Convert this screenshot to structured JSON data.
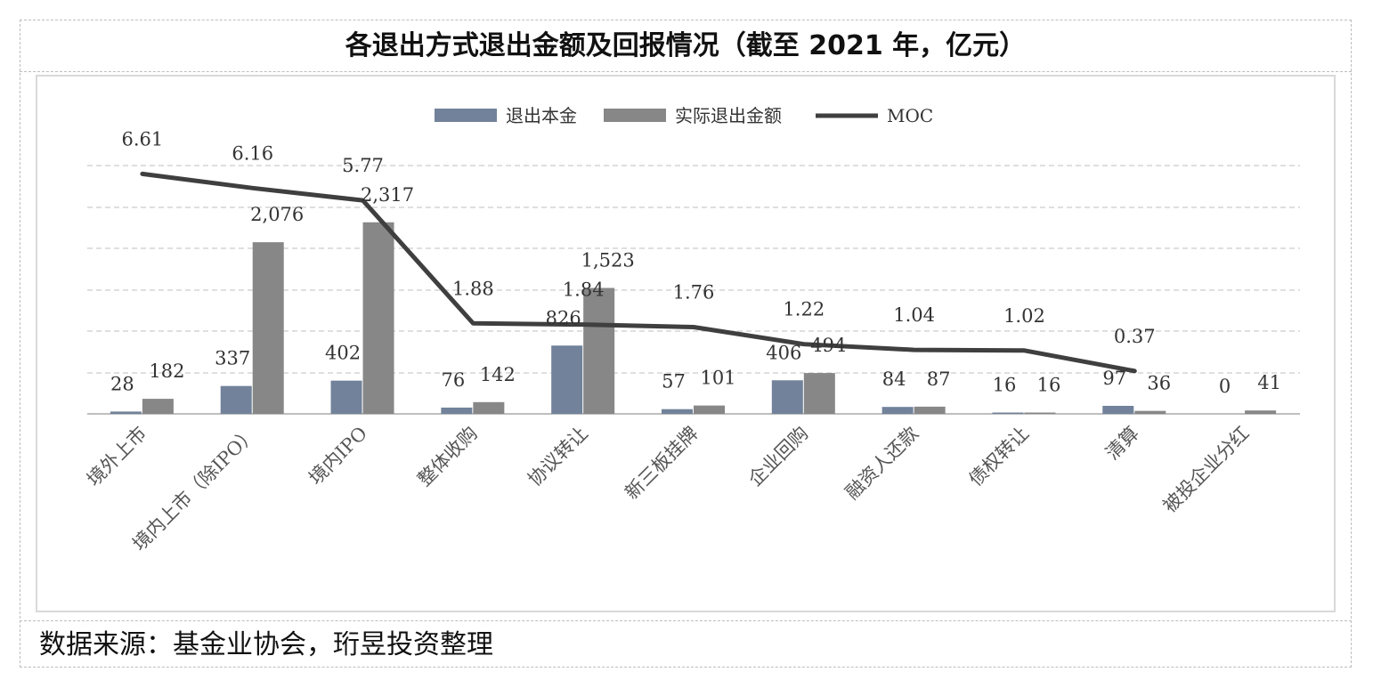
{
  "title": "各退出方式退出金额及回报情况（截至 2021 年，亿元）",
  "source": "数据来源：基金业协会，珩昱投资整理",
  "chart_data": {
    "type": "bar",
    "categories": [
      "境外上市",
      "境内上市（除IPO）",
      "境内IPO",
      "整体收购",
      "协议转让",
      "新三板挂牌",
      "企业回购",
      "融资人还款",
      "债权转让",
      "清算",
      "被投企业分红"
    ],
    "series": [
      {
        "name": "退出本金",
        "type": "bar",
        "color": "#71829a",
        "values": [
          28,
          337,
          402,
          76,
          826,
          57,
          406,
          84,
          16,
          97,
          0
        ],
        "labels": [
          "28",
          "337",
          "402",
          "76",
          "826",
          "57",
          "406",
          "84",
          "16",
          "97",
          "0"
        ]
      },
      {
        "name": "实际退出金额",
        "type": "bar",
        "color": "#878787",
        "values": [
          182,
          2076,
          2317,
          142,
          1523,
          101,
          494,
          87,
          16,
          36,
          41
        ],
        "labels": [
          "182",
          "2,076",
          "2,317",
          "142",
          "1,523",
          "101",
          "494",
          "87",
          "16",
          "36",
          "41"
        ]
      },
      {
        "name": "MOC",
        "type": "line",
        "color": "#3f3f3f",
        "values": [
          6.61,
          6.16,
          5.77,
          1.88,
          1.84,
          1.76,
          1.22,
          1.04,
          1.02,
          0.37,
          null
        ],
        "labels": [
          "6.61",
          "6.16",
          "5.77",
          "1.88",
          "1.84",
          "1.76",
          "1.22",
          "1.04",
          "1.02",
          "0.37",
          ""
        ]
      }
    ],
    "ylim_bar": [
      0,
      2500
    ],
    "legend_position": "top-center",
    "grid": true
  }
}
